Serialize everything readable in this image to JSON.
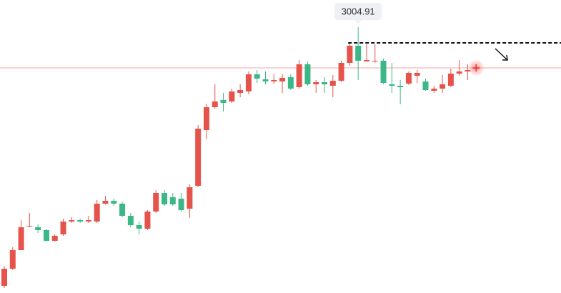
{
  "chart_data": {
    "type": "candlestick",
    "ylim": [
      2633,
      3043
    ],
    "up_color": "#e5534b",
    "down_color": "#3bb886",
    "open": [
      2643,
      2667,
      2693,
      2726,
      2725,
      2721,
      2706,
      2715,
      2733,
      2735,
      2733,
      2733,
      2758,
      2762,
      2758,
      2741,
      2728,
      2723,
      2747,
      2773,
      2767,
      2765,
      2751,
      2783,
      2861,
      2893,
      2903,
      2901,
      2913,
      2915,
      2939,
      2932,
      2929,
      2929,
      2935,
      2921,
      2953,
      2925,
      2928,
      2923,
      2930,
      2955,
      2979,
      2957,
      2957,
      2958,
      2925,
      2923,
      2926,
      2937,
      2929,
      2916,
      2919,
      2923,
      2940,
      2943,
      2947
    ],
    "high": [
      2671,
      2697,
      2735,
      2745,
      2729,
      2723,
      2715,
      2737,
      2739,
      2737,
      2741,
      2763,
      2769,
      2765,
      2761,
      2745,
      2733,
      2749,
      2777,
      2777,
      2773,
      2773,
      2785,
      2868,
      2898,
      2925,
      2913,
      2919,
      2925,
      2943,
      2945,
      2943,
      2939,
      2939,
      2939,
      2959,
      2957,
      2931,
      2935,
      2938,
      2958,
      2983,
      3004.91,
      2981,
      2981,
      2961,
      2955,
      2931,
      2943,
      2945,
      2933,
      2923,
      2938,
      2947,
      2959,
      2953,
      2950
    ],
    "low": [
      2640,
      2665,
      2693,
      2725,
      2717,
      2705,
      2705,
      2713,
      2731,
      2731,
      2731,
      2731,
      2757,
      2755,
      2739,
      2725,
      2715,
      2721,
      2745,
      2755,
      2755,
      2747,
      2738,
      2781,
      2848,
      2891,
      2887,
      2899,
      2907,
      2911,
      2927,
      2925,
      2925,
      2913,
      2917,
      2919,
      2923,
      2913,
      2913,
      2907,
      2928,
      2951,
      2931,
      2957,
      2955,
      2925,
      2913,
      2897,
      2924,
      2927,
      2916,
      2913,
      2913,
      2921,
      2937,
      2931,
      2946
    ],
    "close": [
      2667,
      2693,
      2725,
      2727,
      2721,
      2706,
      2713,
      2733,
      2735,
      2733,
      2735,
      2758,
      2762,
      2758,
      2741,
      2728,
      2723,
      2747,
      2773,
      2757,
      2757,
      2749,
      2781,
      2863,
      2893,
      2901,
      2899,
      2915,
      2917,
      2939,
      2933,
      2929,
      2931,
      2934,
      2919,
      2953,
      2925,
      2928,
      2925,
      2930,
      2955,
      2979,
      2958,
      2959,
      2958,
      2927,
      2923,
      2921,
      2941,
      2941,
      2917,
      2919,
      2925,
      2940,
      2943,
      2945,
      2948
    ],
    "price_line": 2948,
    "price_line_color": "#f4a6a6",
    "dashed_line": 2983
  }
}
